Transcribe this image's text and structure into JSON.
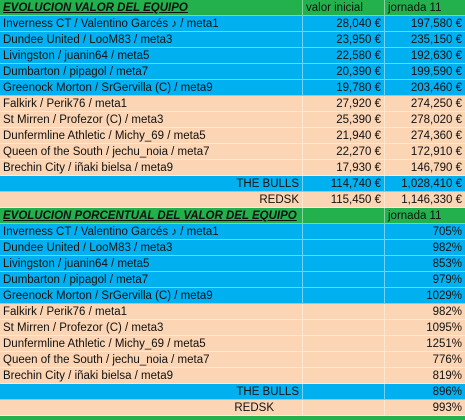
{
  "table1": {
    "title": "EVOLUCION VALOR DEL EQUIPO",
    "headers": [
      "valor inicial",
      "jornada 11"
    ],
    "rows": [
      [
        "Inverness CT / Valentino Garcés ♪ / meta1",
        "28,040 €",
        "197,580 €"
      ],
      [
        "Dundee United / LooM83 / meta3",
        "23,950 €",
        "235,150 €"
      ],
      [
        "Livingston / juanin64 / meta5",
        "22,580 €",
        "192,630 €"
      ],
      [
        "Dumbarton / pipagol / meta7",
        "20,390 €",
        "199,590 €"
      ],
      [
        "Greenock Morton / SrGervilla (C) / meta9",
        "19,780 €",
        "203,460 €"
      ],
      [
        "Falkirk / Perik76 / meta1",
        "27,920 €",
        "274,250 €"
      ],
      [
        "St Mirren / Profezor (C) / meta3",
        "25,390 €",
        "278,020 €"
      ],
      [
        "Dunfermline Athletic / Michy_69 / meta5",
        "21,940 €",
        "274,360 €"
      ],
      [
        "Queen of the South / jechu_noia / meta7",
        "22,270 €",
        "172,910 €"
      ],
      [
        "Brechin City / iñaki bielsa / meta9",
        "17,930 €",
        "146,790 €"
      ]
    ],
    "totals": [
      [
        "THE BULLS",
        "114,740 €",
        "1,028,410 €"
      ],
      [
        "REDSK",
        "115,450 €",
        "1,146,330 €"
      ]
    ]
  },
  "table2": {
    "title": "EVOLUCION PORCENTUAL DEL VALOR DEL EQUIPO",
    "header": "jornada 11",
    "rows": [
      [
        "Inverness CT / Valentino Garcés ♪ / meta1",
        "705%"
      ],
      [
        "Dundee United / LooM83 / meta3",
        "982%"
      ],
      [
        "Livingston / juanin64 / meta5",
        "853%"
      ],
      [
        "Dumbarton / pipagol / meta7",
        "979%"
      ],
      [
        "Greenock Morton / SrGervilla (C) / meta9",
        "1029%"
      ],
      [
        "Falkirk / Perik76 / meta1",
        "982%"
      ],
      [
        "St Mirren / Profezor (C) / meta3",
        "1095%"
      ],
      [
        "Dunfermline Athletic / Michy_69 / meta5",
        "1251%"
      ],
      [
        "Queen of the South / jechu_noia / meta7",
        "776%"
      ],
      [
        "Brechin City / iñaki bielsa / meta9",
        "819%"
      ]
    ],
    "totals": [
      [
        "THE BULLS",
        "896%"
      ],
      [
        "REDSK",
        "993%"
      ]
    ]
  }
}
